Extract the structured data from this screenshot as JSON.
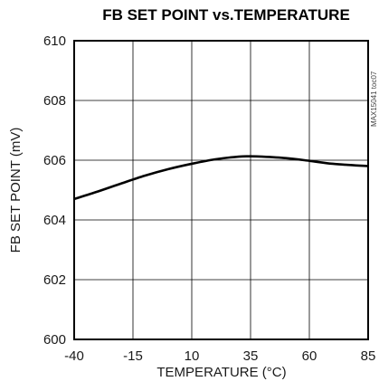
{
  "chart_data": {
    "type": "line",
    "title": "FB SET POINT vs.TEMPERATURE",
    "xlabel": "TEMPERATURE (°C)",
    "ylabel": "FB SET POINT (mV)",
    "xlim": [
      -40,
      85
    ],
    "ylim": [
      600,
      610
    ],
    "x_ticks": [
      -40,
      -15,
      10,
      35,
      60,
      85
    ],
    "y_ticks": [
      600,
      602,
      604,
      606,
      608,
      610
    ],
    "grid": true,
    "side_code": "MAX15041 toc07",
    "series": [
      {
        "x": [
          -40,
          -30,
          -20,
          -10,
          0,
          10,
          20,
          30,
          35,
          40,
          50,
          60,
          70,
          85
        ],
        "y": [
          604.7,
          604.95,
          605.22,
          605.48,
          605.7,
          605.88,
          606.03,
          606.12,
          606.13,
          606.12,
          606.07,
          605.98,
          605.88,
          605.8
        ]
      }
    ]
  }
}
